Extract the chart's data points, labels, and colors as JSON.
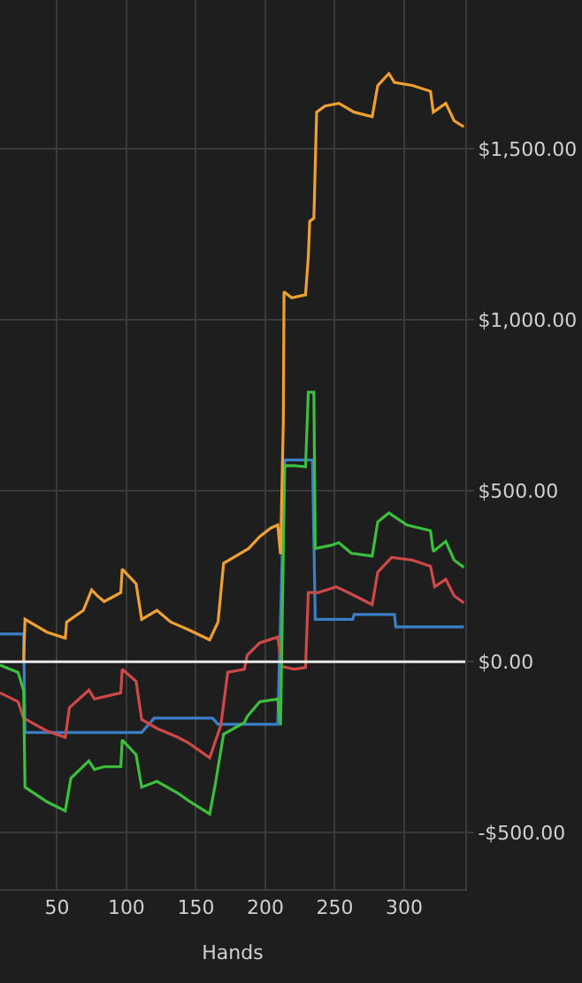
{
  "chart_data": {
    "type": "line",
    "xlabel": "Hands",
    "xlim": [
      9,
      344
    ],
    "ylim": [
      -665,
      1935
    ],
    "xticks": [
      50,
      100,
      150,
      200,
      250,
      300
    ],
    "yticks": [
      {
        "value": -500,
        "label": "-$500.00"
      },
      {
        "value": 0,
        "label": "$0.00"
      },
      {
        "value": 500,
        "label": "$500.00"
      },
      {
        "value": 1000,
        "label": "$1,000.00"
      },
      {
        "value": 1500,
        "label": "$1,500.00"
      }
    ],
    "grid": true,
    "marker": "none",
    "line_style": "solid",
    "ref_lines": [
      {
        "axis": "y",
        "value": 0,
        "color": "#e8e8e8"
      }
    ],
    "series": [
      {
        "color": "#3a7fc8",
        "x": [
          9,
          26,
          27,
          111,
          120,
          162,
          166,
          209,
          214,
          234,
          236,
          263,
          264,
          293,
          294,
          343
        ],
        "values": [
          81,
          81,
          -207,
          -207,
          -165,
          -165,
          -183,
          -183,
          590,
          590,
          124,
          124,
          138,
          138,
          102,
          102
        ]
      },
      {
        "color": "#d04848",
        "x": [
          9,
          22,
          26,
          43,
          56,
          59,
          73,
          77,
          96,
          97,
          107,
          111,
          122,
          137,
          145,
          160,
          168,
          173,
          185,
          187,
          196,
          209,
          212,
          221,
          229,
          231,
          238,
          251,
          260,
          277,
          281,
          291,
          306,
          319,
          322,
          330,
          336,
          343
        ],
        "values": [
          -91,
          -117,
          -165,
          -203,
          -221,
          -134,
          -83,
          -109,
          -91,
          -22,
          -57,
          -169,
          -195,
          -221,
          -238,
          -281,
          -186,
          -31,
          -22,
          19,
          55,
          72,
          -14,
          -22,
          -17,
          202,
          202,
          219,
          202,
          167,
          262,
          305,
          297,
          279,
          219,
          241,
          193,
          172
        ]
      },
      {
        "color": "#3cbf3c",
        "x": [
          9,
          22,
          26,
          27,
          43,
          56,
          60,
          73,
          77,
          84,
          96,
          97,
          107,
          111,
          122,
          137,
          145,
          160,
          164,
          170,
          185,
          187,
          196,
          209,
          211,
          214,
          221,
          229,
          231,
          235,
          236,
          247,
          253,
          262,
          277,
          281,
          289,
          302,
          319,
          321,
          330,
          336,
          343
        ],
        "values": [
          -10,
          -31,
          -83,
          -367,
          -410,
          -436,
          -341,
          -290,
          -315,
          -307,
          -307,
          -229,
          -272,
          -367,
          -350,
          -384,
          -407,
          -445,
          -359,
          -212,
          -178,
          -160,
          -117,
          -109,
          -186,
          573,
          573,
          570,
          788,
          788,
          331,
          340,
          348,
          317,
          309,
          409,
          435,
          400,
          383,
          322,
          352,
          297,
          276
        ]
      },
      {
        "color": "#f0a030",
        "x": [
          26,
          27,
          43,
          56,
          57,
          69,
          75,
          79,
          84,
          96,
          97,
          107,
          111,
          122,
          132,
          145,
          160,
          166,
          170,
          188,
          196,
          204,
          209,
          211,
          213,
          213.5,
          219,
          229,
          231,
          232,
          235,
          236,
          237,
          243,
          253,
          264,
          277,
          281,
          289,
          293,
          306,
          319,
          321,
          330,
          336,
          343
        ],
        "values": [
          0,
          124,
          86,
          69,
          116,
          150,
          210,
          193,
          176,
          202,
          271,
          228,
          124,
          150,
          116,
          93,
          64,
          116,
          288,
          331,
          366,
          391,
          400,
          314,
          702,
          1082,
          1064,
          1073,
          1185,
          1288,
          1297,
          1452,
          1607,
          1625,
          1633,
          1607,
          1594,
          1685,
          1720,
          1694,
          1685,
          1668,
          1607,
          1633,
          1582,
          1564
        ]
      }
    ]
  }
}
